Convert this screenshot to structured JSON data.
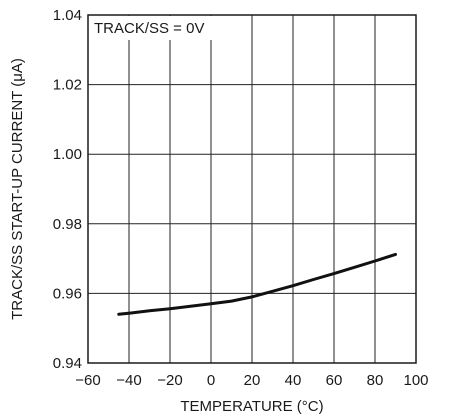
{
  "chart_data": {
    "type": "line",
    "title": "",
    "xlabel": "TEMPERATURE  (°C)",
    "ylabel": "TRACK/SS START-UP CURRENT (μA)",
    "annotation": "TRACK/SS = 0V",
    "xlim": [
      -60,
      100
    ],
    "ylim": [
      0.94,
      1.04
    ],
    "x_ticks": [
      -60,
      -40,
      -20,
      0,
      20,
      40,
      60,
      80,
      100
    ],
    "x_tick_labels": [
      "−60",
      "−40",
      "−20",
      "0",
      "20",
      "40",
      "60",
      "80",
      "100"
    ],
    "y_ticks": [
      0.94,
      0.96,
      0.98,
      1.0,
      1.02,
      1.04
    ],
    "y_tick_labels": [
      "0.94",
      "0.96",
      "0.98",
      "1.00",
      "1.02",
      "1.04"
    ],
    "grid": true,
    "series": [
      {
        "x": [
          -45,
          -40,
          -30,
          -20,
          -10,
          0,
          10,
          20,
          30,
          40,
          50,
          60,
          70,
          80,
          90
        ],
        "y": [
          0.954,
          0.9543,
          0.955,
          0.9556,
          0.9563,
          0.957,
          0.9578,
          0.959,
          0.9606,
          0.9622,
          0.964,
          0.9657,
          0.9675,
          0.9693,
          0.9712
        ],
        "color": "#111111"
      }
    ]
  }
}
